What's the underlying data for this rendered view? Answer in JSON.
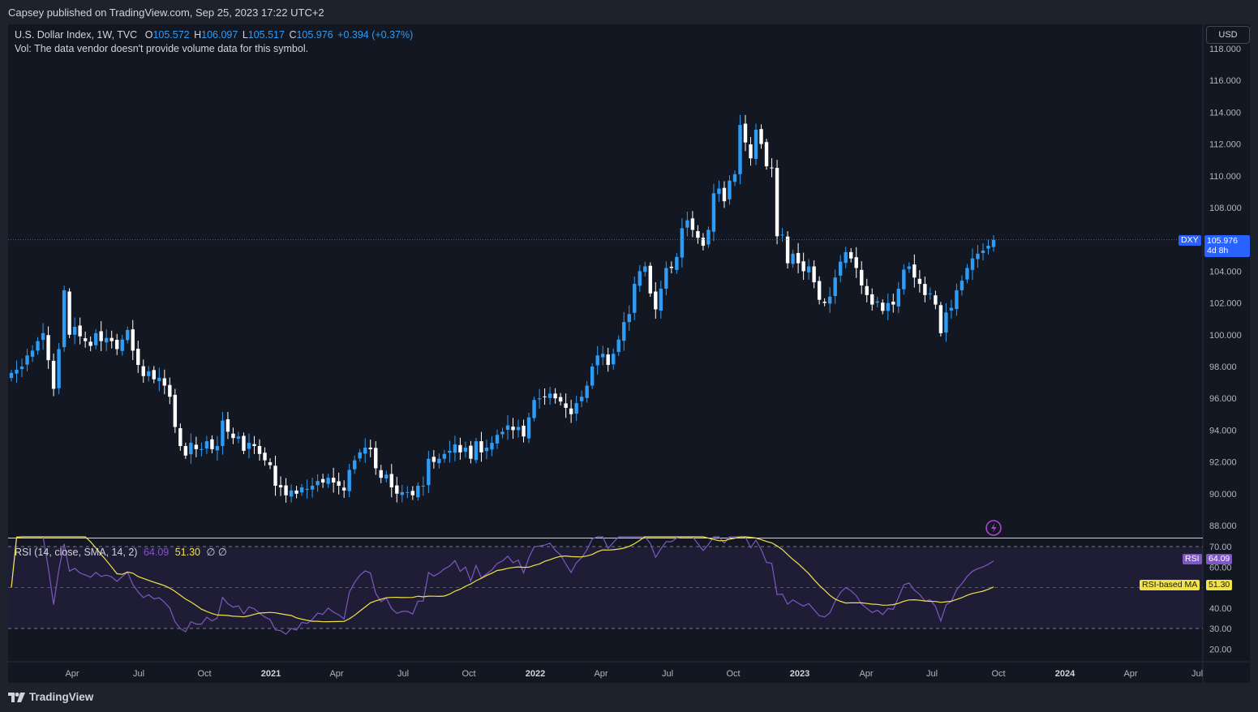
{
  "header": {
    "published": "Capsey published on TradingView.com, Sep 25, 2023 17:22 UTC+2"
  },
  "legend": {
    "symbol": "U.S. Dollar Index, 1W, TVC",
    "open_label": "O",
    "open": "105.572",
    "high_label": "H",
    "high": "106.097",
    "low_label": "L",
    "low": "105.517",
    "close_label": "C",
    "close": "105.976",
    "change": "+0.394 (+0.37%)",
    "vol_note": "Vol: The data vendor doesn't provide volume data for this symbol."
  },
  "currency_button": "USD",
  "price_tag": {
    "ticker": "DXY",
    "value": "105.976",
    "countdown": "4d 8h"
  },
  "rsi_panel": {
    "label": "RSI (14, close, SMA, 14, 2)",
    "rsi": "64.09",
    "rsi_ma": "51.30",
    "extra": "∅ ∅",
    "tag_rsi": "RSI",
    "tag_rsi_ma": "RSI-based MA"
  },
  "branding": "TradingView",
  "colors": {
    "background": "#131722",
    "frame": "#1e222d",
    "up_candle": "#2e9cf5",
    "down_candle": "#ffffff",
    "rsi_line": "#7e57c2",
    "rsi_ma_line": "#f2e24a",
    "last_price": "#2962ff"
  },
  "chart_data": {
    "type": "candlestick",
    "title": "U.S. Dollar Index, 1W, TVC",
    "timeframe": "1W",
    "price_axis": {
      "ticks": [
        "118.000",
        "116.000",
        "114.000",
        "112.000",
        "110.000",
        "108.000",
        "106.000",
        "104.000",
        "102.000",
        "100.000",
        "98.000",
        "96.000",
        "94.000",
        "92.000",
        "90.000",
        "88.000"
      ],
      "ylim": [
        87.2,
        118.5
      ]
    },
    "time_axis": {
      "labels": [
        "Apr",
        "Jul",
        "Oct",
        "2021",
        "Apr",
        "Jul",
        "Oct",
        "2022",
        "Apr",
        "Jul",
        "Oct",
        "2023",
        "Apr",
        "Jul",
        "Oct",
        "2024",
        "Apr",
        "Jul"
      ],
      "bold": [
        "2021",
        "2022",
        "2023",
        "2024"
      ]
    },
    "rsi_axis": {
      "ticks": [
        "70.00",
        "60.00",
        "40.00",
        "30.00",
        "20.00"
      ],
      "bands": [
        70,
        30
      ],
      "midline": 50
    },
    "last_close": 105.976,
    "weekly_closes_approx": [
      97.6,
      97.8,
      98.0,
      98.7,
      99.0,
      99.6,
      100.1,
      98.4,
      96.6,
      99.1,
      102.8,
      100.0,
      100.5,
      99.9,
      99.6,
      99.3,
      100.1,
      99.6,
      99.8,
      99.6,
      99.1,
      99.7,
      100.3,
      99.0,
      98.1,
      97.4,
      97.7,
      97.2,
      97.3,
      96.8,
      96.1,
      94.2,
      93.0,
      92.4,
      93.2,
      92.8,
      92.8,
      93.3,
      92.8,
      93.0,
      94.6,
      93.9,
      93.5,
      93.6,
      92.7,
      93.2,
      93.0,
      92.5,
      92.1,
      91.8,
      90.5,
      90.4,
      89.9,
      90.2,
      90.0,
      90.4,
      90.3,
      90.5,
      90.8,
      90.7,
      91.0,
      90.7,
      90.5,
      90.2,
      91.5,
      92.1,
      92.6,
      92.9,
      92.8,
      91.6,
      91.0,
      91.2,
      90.4,
      90.0,
      90.1,
      90.1,
      89.9,
      90.5,
      90.5,
      92.2,
      92.0,
      92.2,
      92.5,
      92.7,
      93.1,
      92.6,
      92.9,
      92.2,
      93.3,
      92.6,
      92.9,
      93.2,
      93.7,
      93.9,
      94.3,
      94.0,
      94.2,
      93.6,
      94.8,
      95.9,
      96.0,
      96.1,
      96.3,
      96.0,
      95.8,
      95.4,
      95.0,
      95.7,
      96.1,
      96.8,
      98.0,
      98.7,
      98.8,
      98.1,
      98.8,
      99.7,
      100.8,
      101.3,
      103.2,
      104.0,
      104.3,
      102.6,
      101.6,
      102.9,
      104.2,
      104.2,
      104.9,
      106.7,
      107.2,
      106.6,
      106.1,
      105.6,
      106.6,
      108.9,
      109.2,
      108.4,
      109.7,
      110.1,
      113.2,
      112.1,
      111.1,
      112.9,
      112.0,
      110.6,
      110.5,
      106.2,
      106.3,
      104.5,
      105.1,
      104.5,
      104.0,
      104.3,
      103.3,
      102.2,
      102.0,
      102.4,
      103.6,
      104.6,
      105.2,
      104.8,
      104.2,
      103.1,
      102.5,
      101.9,
      102.1,
      101.5,
      102.0,
      101.9,
      102.9,
      104.1,
      104.3,
      103.6,
      103.2,
      102.5,
      102.6,
      101.9,
      100.1,
      101.4,
      101.7,
      102.8,
      103.4,
      104.2,
      104.8,
      105.1,
      105.3,
      105.6,
      105.97
    ]
  }
}
